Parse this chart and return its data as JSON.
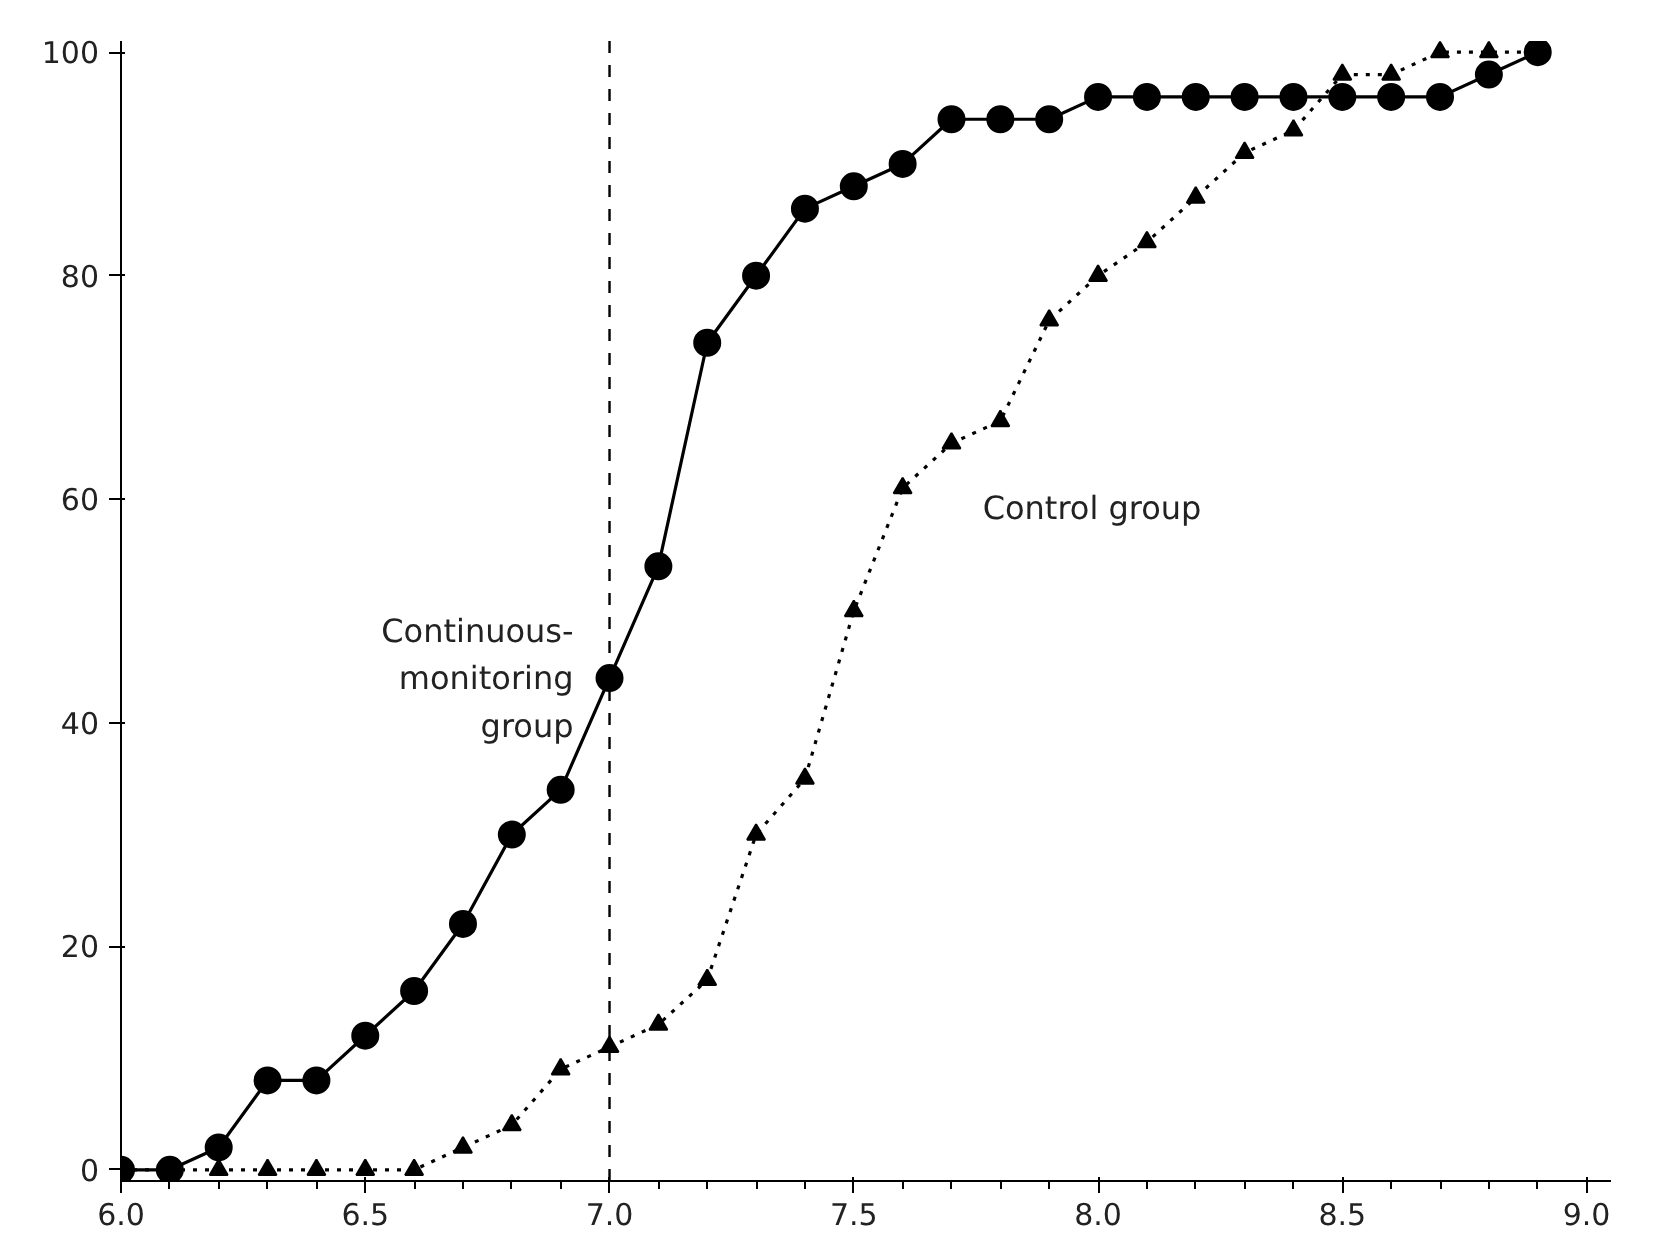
{
  "chart_data": {
    "type": "line",
    "x": [
      6.0,
      6.1,
      6.2,
      6.3,
      6.4,
      6.5,
      6.6,
      6.7,
      6.8,
      6.9,
      7.0,
      7.1,
      7.2,
      7.3,
      7.4,
      7.5,
      7.6,
      7.7,
      7.8,
      7.9,
      8.0,
      8.1,
      8.2,
      8.3,
      8.4,
      8.5,
      8.6,
      8.7,
      8.8,
      8.9
    ],
    "series": [
      {
        "name": "Continuous-\nmonitoring\ngroup",
        "color": "#000000",
        "marker": "circle",
        "line_style": "solid",
        "values": [
          0,
          0,
          2,
          8,
          8,
          12,
          16,
          22,
          30,
          34,
          44,
          54,
          74,
          80,
          86,
          88,
          90,
          94,
          94,
          94,
          96,
          96,
          96,
          96,
          96,
          96,
          96,
          96,
          98,
          100
        ]
      },
      {
        "name": "Control group",
        "color": "#000000",
        "marker": "triangle",
        "line_style": "dotted",
        "values": [
          0,
          0,
          0,
          0,
          0,
          0,
          0,
          2,
          4,
          9,
          11,
          13,
          17,
          30,
          35,
          50,
          61,
          65,
          67,
          76,
          80,
          83,
          87,
          91,
          93,
          98,
          98,
          100,
          100,
          100
        ]
      }
    ],
    "xlim": [
      6.0,
      9.05
    ],
    "ylim": [
      -1,
      101
    ],
    "xticks": [
      {
        "value": 6.0,
        "label": "6.0"
      },
      {
        "value": 6.5,
        "label": "6.5"
      },
      {
        "value": 7.0,
        "label": "7.0"
      },
      {
        "value": 7.5,
        "label": "7.5"
      },
      {
        "value": 8.0,
        "label": "8.0"
      },
      {
        "value": 8.5,
        "label": "8.5"
      },
      {
        "value": 9.0,
        "label": "9.0"
      }
    ],
    "yticks": [
      0,
      20,
      40,
      60,
      80,
      100
    ],
    "ref_lines": [
      {
        "axis": "x",
        "value": 7.0,
        "color": "#000000",
        "line_style": "dashed"
      }
    ],
    "grid": false,
    "legend": false
  }
}
